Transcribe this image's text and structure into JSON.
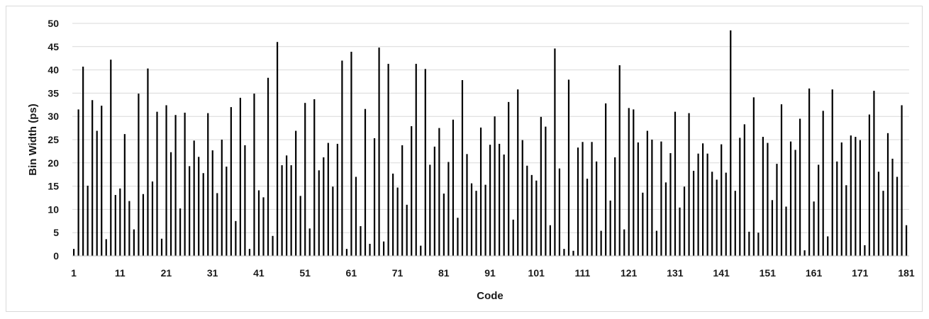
{
  "chart_data": {
    "type": "bar",
    "title": "",
    "xlabel": "Code",
    "ylabel": "Bin Width (ps)",
    "ylim": [
      0,
      50
    ],
    "yticks": [
      0,
      5,
      10,
      15,
      20,
      25,
      30,
      35,
      40,
      45,
      50
    ],
    "xtick_labels": [
      "1",
      "11",
      "21",
      "31",
      "41",
      "51",
      "61",
      "71",
      "81",
      "91",
      "101",
      "111",
      "121",
      "131",
      "141",
      "151",
      "161",
      "171",
      "181"
    ],
    "grid": "horizontal",
    "bar_color": "#000000",
    "grid_color": "#d9d9d9",
    "x": [
      1,
      2,
      3,
      4,
      5,
      6,
      7,
      8,
      9,
      10,
      11,
      12,
      13,
      14,
      15,
      16,
      17,
      18,
      19,
      20,
      21,
      22,
      23,
      24,
      25,
      26,
      27,
      28,
      29,
      30,
      31,
      32,
      33,
      34,
      35,
      36,
      37,
      38,
      39,
      40,
      41,
      42,
      43,
      44,
      45,
      46,
      47,
      48,
      49,
      50,
      51,
      52,
      53,
      54,
      55,
      56,
      57,
      58,
      59,
      60,
      61,
      62,
      63,
      64,
      65,
      66,
      67,
      68,
      69,
      70,
      71,
      72,
      73,
      74,
      75,
      76,
      77,
      78,
      79,
      80,
      81,
      82,
      83,
      84,
      85,
      86,
      87,
      88,
      89,
      90,
      91,
      92,
      93,
      94,
      95,
      96,
      97,
      98,
      99,
      100,
      101,
      102,
      103,
      104,
      105,
      106,
      107,
      108,
      109,
      110,
      111,
      112,
      113,
      114,
      115,
      116,
      117,
      118,
      119,
      120,
      121,
      122,
      123,
      124,
      125,
      126,
      127,
      128,
      129,
      130,
      131,
      132,
      133,
      134,
      135,
      136,
      137,
      138,
      139,
      140,
      141,
      142,
      143,
      144,
      145,
      146,
      147,
      148,
      149,
      150,
      151,
      152,
      153,
      154,
      155,
      156,
      157,
      158,
      159,
      160,
      161,
      162,
      163,
      164,
      165,
      166,
      167,
      168,
      169,
      170,
      171,
      172,
      173,
      174,
      175,
      176,
      177,
      178,
      179,
      180,
      181
    ],
    "values": [
      1.5,
      31.5,
      40.7,
      15.1,
      33.5,
      26.9,
      32.3,
      3.6,
      42.2,
      13.1,
      14.5,
      26.2,
      11.8,
      5.7,
      34.9,
      13.3,
      40.3,
      16,
      31,
      3.7,
      32.4,
      22.3,
      30.3,
      10.2,
      30.8,
      19.3,
      24.8,
      21.3,
      17.8,
      30.7,
      22.7,
      13.5,
      25,
      19.2,
      32,
      7.5,
      34,
      23.8,
      1.5,
      34.9,
      14.1,
      12.6,
      38.3,
      4.3,
      46,
      19.5,
      21.6,
      19.5,
      26.9,
      12.9,
      32.9,
      5.9,
      33.7,
      18.4,
      21.2,
      24.3,
      14.9,
      24.1,
      42,
      1.5,
      43.9,
      17,
      6.4,
      31.6,
      2.6,
      25.3,
      44.8,
      3.1,
      41.3,
      17.7,
      14.7,
      23.8,
      11,
      27.9,
      41.3,
      2.2,
      40.2,
      19.6,
      23.5,
      27.5,
      13.4,
      20.2,
      29.3,
      8.2,
      37.8,
      21.9,
      15.6,
      14,
      27.6,
      15.3,
      23.9,
      30,
      24.1,
      21.8,
      33.1,
      7.8,
      35.8,
      24.9,
      19.4,
      17.4,
      16.2,
      29.9,
      27.8,
      6.6,
      44.6,
      18.8,
      1.5,
      37.9,
      1.1,
      23.3,
      24.5,
      16.6,
      24.5,
      20.3,
      5.4,
      32.8,
      11.9,
      21.2,
      41,
      5.7,
      31.8,
      31.5,
      24.4,
      13.6,
      26.9,
      25,
      5.4,
      24.6,
      15.8,
      22.1,
      31,
      10.4,
      14.9,
      30.7,
      18.3,
      22,
      24.2,
      22,
      18.1,
      16.4,
      24,
      17.9,
      48.5,
      14,
      25.4,
      28.3,
      5.2,
      34.1,
      5,
      25.6,
      24.3,
      12,
      19.8,
      32.6,
      10.6,
      24.6,
      22.8,
      29.5,
      1.2,
      36,
      11.7,
      19.6,
      31.2,
      4.2,
      35.8,
      20.3,
      24.4,
      15.2,
      25.9,
      25.6,
      24.9,
      2.3,
      30.4,
      35.5,
      18.1,
      14,
      26.4,
      20.9,
      17,
      32.4,
      6.6
    ]
  }
}
